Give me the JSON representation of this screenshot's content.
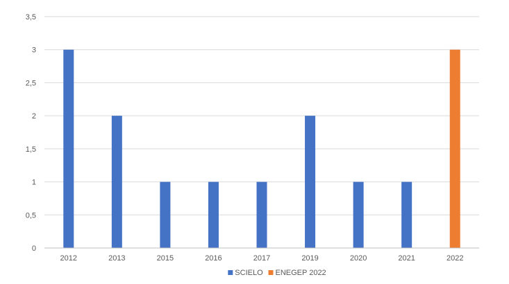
{
  "chart_data": {
    "type": "bar",
    "categories": [
      "2012",
      "2013",
      "2015",
      "2016",
      "2017",
      "2019",
      "2020",
      "2021",
      "2022"
    ],
    "series": [
      {
        "name": "SCIELO",
        "values": [
          3,
          2,
          1,
          1,
          1,
          2,
          1,
          1,
          0
        ],
        "color": "#4472c4"
      },
      {
        "name": "ENEGEP 2022",
        "values": [
          0,
          0,
          0,
          0,
          0,
          0,
          0,
          0,
          3
        ],
        "color": "#ed7d31"
      }
    ],
    "ylim": [
      0,
      3.5
    ],
    "yticks": [
      "0",
      "0,5",
      "1",
      "1,5",
      "2",
      "2,5",
      "3",
      "3,5"
    ],
    "grid": true,
    "legend": "bottom"
  }
}
